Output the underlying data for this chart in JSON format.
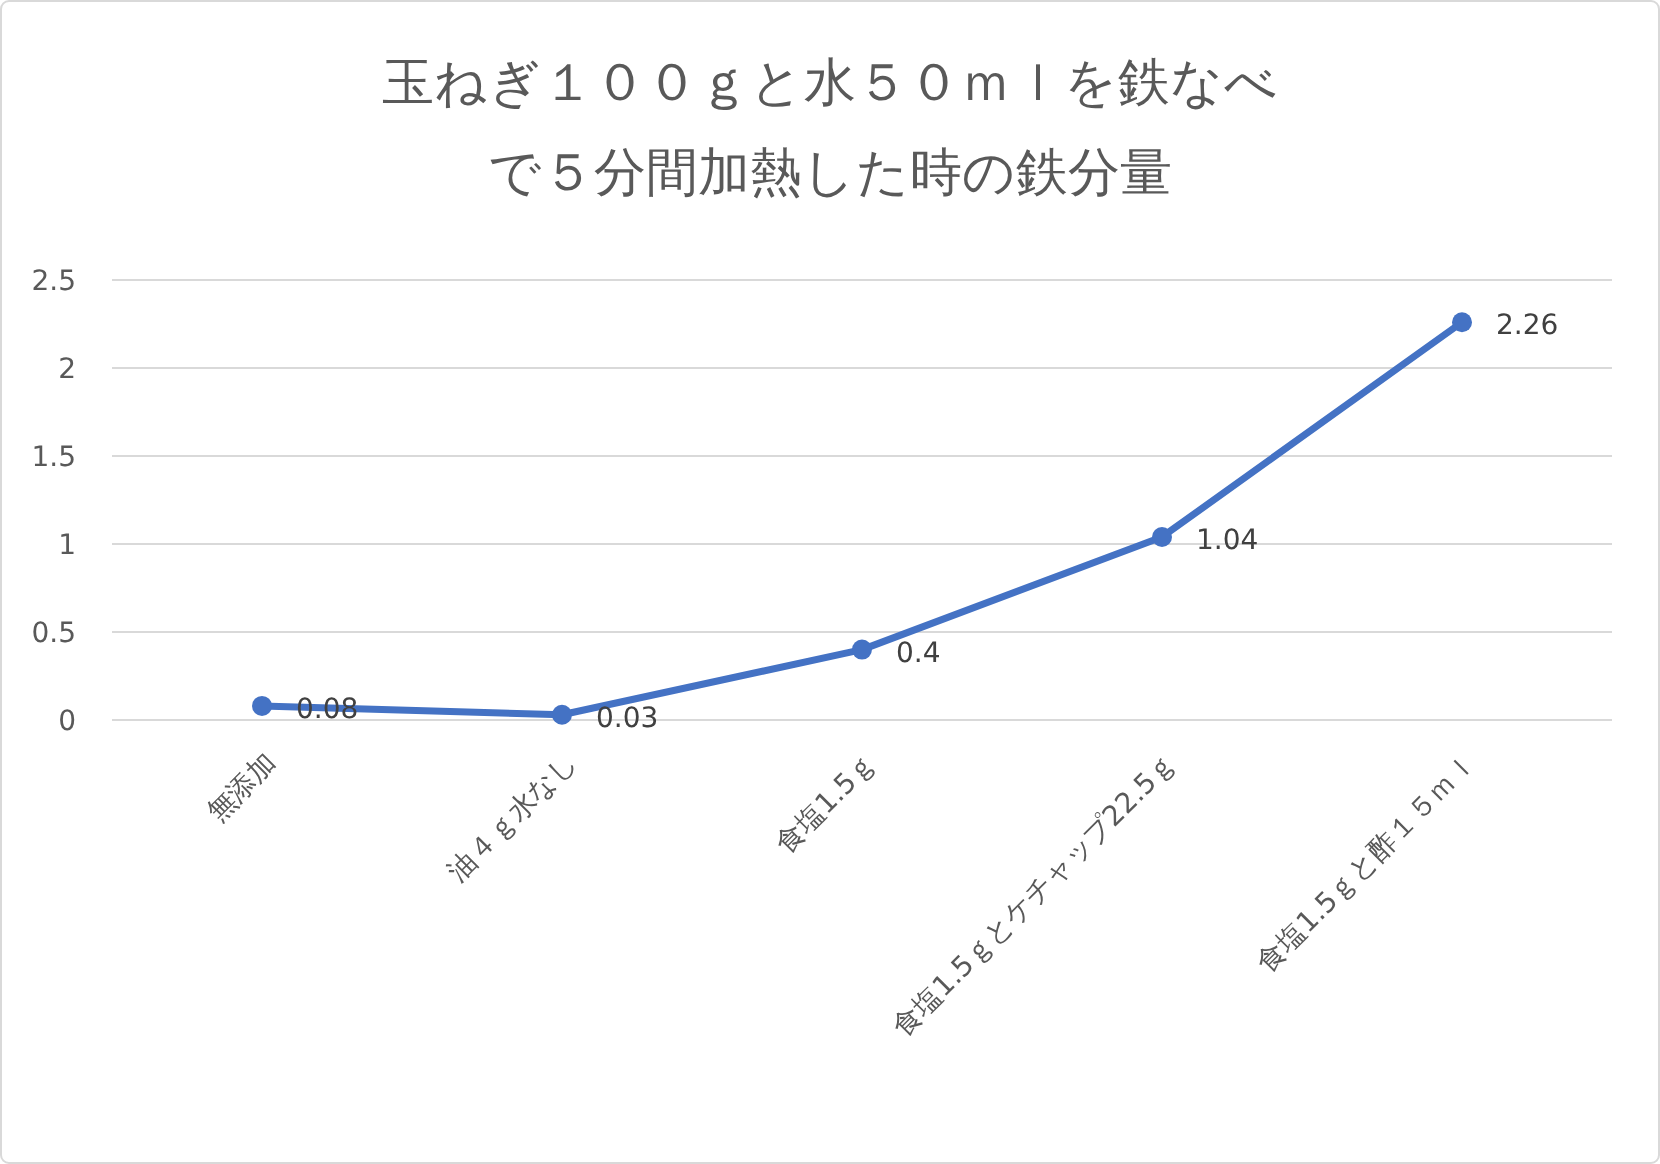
{
  "chart_data": {
    "type": "line",
    "title": "玉ねぎ１００ｇと水５０ｍｌを鉄なべで５分間加熱した時の鉄分量",
    "categories": [
      "無添加",
      "油４ｇ水なし",
      "食塩1.5ｇ",
      "食塩1.5ｇとケチャップ22.5ｇ",
      "食塩1.5ｇと酢１５ｍｌ"
    ],
    "series": [
      {
        "color": "#4472c4",
        "values": [
          0.08,
          0.03,
          0.4,
          1.04,
          2.26
        ]
      }
    ],
    "ylim": [
      0,
      2.5
    ],
    "yticks": [
      0,
      0.5,
      1,
      1.5,
      2,
      2.5
    ],
    "grid": "y",
    "marker": "circle",
    "line_style": "solid",
    "data_labels": true
  }
}
